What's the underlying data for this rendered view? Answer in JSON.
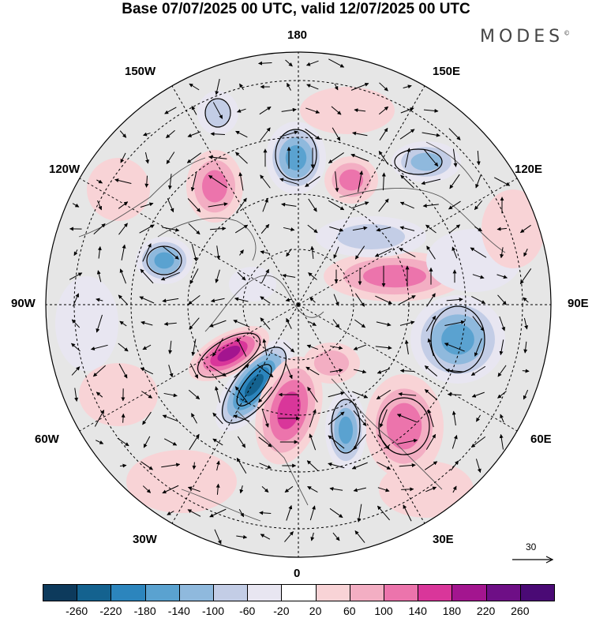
{
  "header": {
    "title": "Base 07/07/2025 00 UTC, valid 12/07/2025 00 UTC",
    "brand": "MODES",
    "brand_mark": "©"
  },
  "longitudes": {
    "top": "180",
    "bottom": "0",
    "left": "90W",
    "right": "90E",
    "upper_left_outer": "150W",
    "upper_left_inner": "120W",
    "upper_right_outer": "150E",
    "upper_right_inner": "120E",
    "lower_left_outer": "60W",
    "lower_left_inner": "30W",
    "lower_right_outer": "60E",
    "lower_right_inner": "30E"
  },
  "reference_vector": {
    "value": "30"
  },
  "colorbar": {
    "labels": [
      "-260",
      "-220",
      "-180",
      "-140",
      "-100",
      "-60",
      "-20",
      "20",
      "60",
      "100",
      "140",
      "180",
      "220",
      "260"
    ],
    "colors": [
      "#0d3a5c",
      "#14628f",
      "#2c85bd",
      "#5aa2d0",
      "#8fb9dd",
      "#c3cde6",
      "#e8e6f1",
      "#ffffff",
      "#f8d3d6",
      "#f3aec3",
      "#ec74ac",
      "#d9369a",
      "#a3158f",
      "#6e0f86",
      "#4a0a75"
    ]
  },
  "map_colors": {
    "land_shade": "#e8e8e8",
    "coast": "#555555",
    "contour": "#000000",
    "grid": "#000000"
  }
}
